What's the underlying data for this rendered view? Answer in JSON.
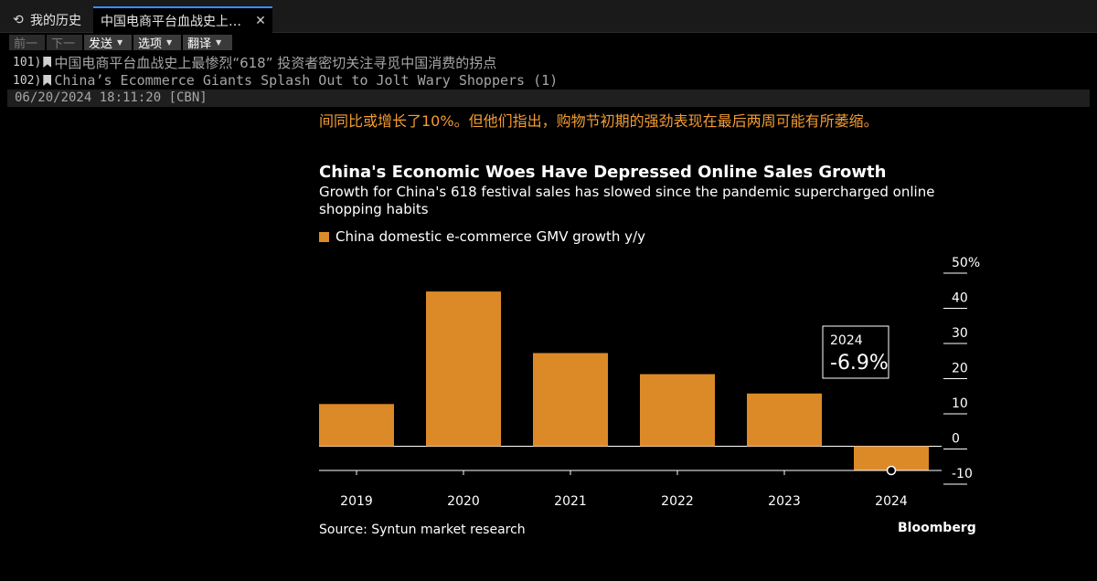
{
  "tabs": {
    "history": "我的历史",
    "article": "中国电商平台血战史上…",
    "close": "✕"
  },
  "toolbar": {
    "prev": "前一",
    "next": "下一",
    "send": "发送",
    "options": "选项",
    "translate": "翻译"
  },
  "headlines": [
    {
      "num": "101)",
      "title": "中国电商平台血战史上最惨烈“618” 投资者密切关注寻觅中国消费的拐点"
    },
    {
      "num": "102)",
      "title": "China’s Ecommerce Giants Splash Out to Jolt Wary Shoppers (1)"
    }
  ],
  "meta": "06/20/2024 18:11:20 [CBN]",
  "article": {
    "body_cut": "间同比或增长了10%。但他们指出，购物节初期的强劲表现在最后两周可能有所萎缩。"
  },
  "chart_data": {
    "type": "bar",
    "title": "China's Economic Woes Have Depressed Online Sales Growth",
    "subtitle": "Growth for China's 618 festival sales has slowed since the pandemic supercharged online shopping habits",
    "legend": "China domestic e-commerce GMV growth y/y",
    "categories": [
      "2019",
      "2020",
      "2021",
      "2022",
      "2023",
      "2024"
    ],
    "values": [
      12,
      44,
      26.5,
      20.5,
      15,
      -6.9
    ],
    "ylim": [
      -10,
      50
    ],
    "yticks": [
      "50%",
      "40",
      "30",
      "20",
      "10",
      "0",
      "-10"
    ],
    "ytick_values": [
      50,
      40,
      30,
      20,
      10,
      0,
      -10
    ],
    "annotation": {
      "label": "2024",
      "value": "-6.9%"
    },
    "bar_color": "#dc8a28",
    "source": "Source: Syntun market research",
    "logo": "Bloomberg"
  }
}
